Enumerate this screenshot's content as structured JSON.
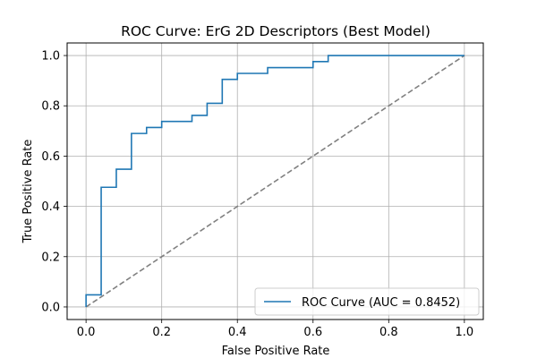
{
  "chart_data": {
    "type": "line",
    "title": "ROC Curve: ErG 2D Descriptors (Best Model)",
    "xlabel": "False Positive Rate",
    "ylabel": "True Positive Rate",
    "xlim": [
      -0.05,
      1.05
    ],
    "ylim": [
      -0.05,
      1.05
    ],
    "xticks": [
      0.0,
      0.2,
      0.4,
      0.6,
      0.8,
      1.0
    ],
    "yticks": [
      0.0,
      0.2,
      0.4,
      0.6,
      0.8,
      1.0
    ],
    "xtick_labels": [
      "0.0",
      "0.2",
      "0.4",
      "0.6",
      "0.8",
      "1.0"
    ],
    "ytick_labels": [
      "0.0",
      "0.2",
      "0.4",
      "0.6",
      "0.8",
      "1.0"
    ],
    "grid": true,
    "legend_position": "lower-right",
    "series": [
      {
        "name": "ROC Curve (AUC = 0.8452)",
        "color": "#1f77b4",
        "style": "solid",
        "x": [
          0.0,
          0.0,
          0.04,
          0.04,
          0.08,
          0.08,
          0.12,
          0.12,
          0.16,
          0.16,
          0.2,
          0.2,
          0.28,
          0.28,
          0.32,
          0.32,
          0.36,
          0.36,
          0.4,
          0.4,
          0.48,
          0.48,
          0.6,
          0.6,
          0.64,
          0.64,
          1.0
        ],
        "y": [
          0.0,
          0.048,
          0.048,
          0.476,
          0.476,
          0.548,
          0.548,
          0.69,
          0.69,
          0.714,
          0.714,
          0.738,
          0.738,
          0.762,
          0.762,
          0.81,
          0.81,
          0.905,
          0.905,
          0.929,
          0.929,
          0.952,
          0.952,
          0.976,
          0.976,
          1.0,
          1.0
        ]
      },
      {
        "name": "",
        "color": "#808080",
        "style": "dashed",
        "x": [
          0.0,
          1.0
        ],
        "y": [
          0.0,
          1.0
        ]
      }
    ]
  }
}
